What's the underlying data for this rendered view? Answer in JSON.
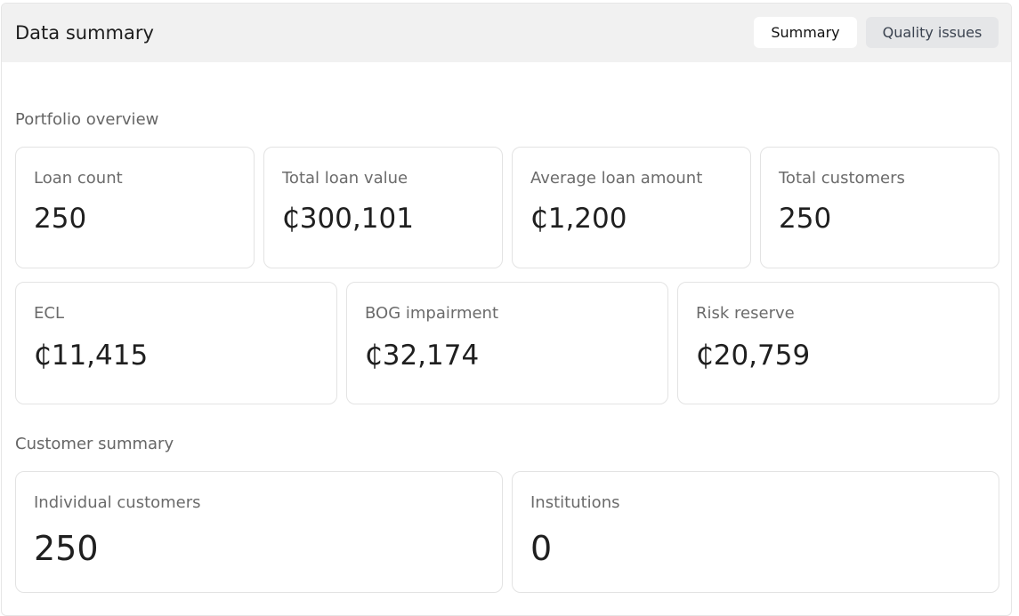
{
  "header": {
    "title": "Data summary",
    "tabs": [
      {
        "label": "Summary",
        "active": true
      },
      {
        "label": "Quality issues",
        "active": false
      }
    ]
  },
  "sections": {
    "portfolio": {
      "title": "Portfolio overview",
      "cards": [
        {
          "label": "Loan count",
          "value": "250"
        },
        {
          "label": "Total loan value",
          "value": "₵300,101"
        },
        {
          "label": "Average loan amount",
          "value": "₵1,200"
        },
        {
          "label": "Total customers",
          "value": "250"
        },
        {
          "label": "ECL",
          "value": "₵11,415"
        },
        {
          "label": "BOG impairment",
          "value": "₵32,174"
        },
        {
          "label": "Risk reserve",
          "value": "₵20,759"
        }
      ]
    },
    "customers": {
      "title": "Customer summary",
      "cards": [
        {
          "label": "Individual customers",
          "value": "250"
        },
        {
          "label": "Institutions",
          "value": "0"
        }
      ]
    }
  },
  "colors": {
    "header_bg": "#f1f1f1",
    "active_tab_bg": "#ffffff",
    "inactive_tab_bg": "#e5e6e8",
    "card_border": "#e3e3e3",
    "label_text": "#6b6b6b",
    "value_text": "#1f1f1f"
  }
}
